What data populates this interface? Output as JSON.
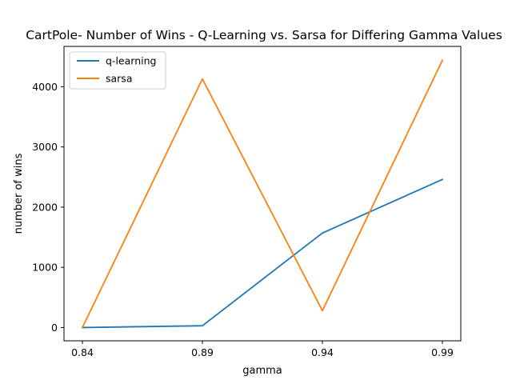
{
  "chart_data": {
    "type": "line",
    "title": "CartPole- Number of Wins - Q-Learning vs. Sarsa for Differing Gamma Values",
    "xlabel": "gamma",
    "ylabel": "number of wins",
    "categories": [
      "0.84",
      "0.89",
      "0.94",
      "0.99"
    ],
    "yticks": [
      "0",
      "1000",
      "2000",
      "3000",
      "4000"
    ],
    "ylim": [
      -220,
      4670
    ],
    "grid": false,
    "legend_position": "top-left",
    "series": [
      {
        "name": "q-learning",
        "color": "#1f77b4",
        "values": [
          0,
          30,
          1570,
          2460
        ]
      },
      {
        "name": "sarsa",
        "color": "#ff7f0e",
        "values": [
          0,
          4130,
          280,
          4440
        ]
      }
    ]
  }
}
